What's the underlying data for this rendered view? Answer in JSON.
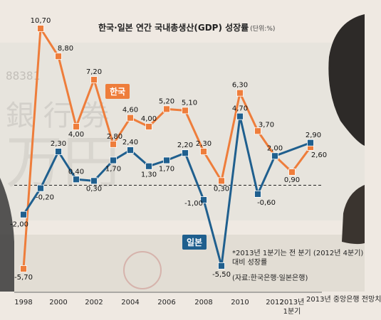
{
  "title": "한국·일본 연간 국내총생산(GDP) 성장률",
  "unit": "(단위:%)",
  "note": "*2013년 1분기는 전 분기 (2012년 4분기) 대비 성장률",
  "source": "(자료:한국은행·일본은행)",
  "last_tick_label": "2013년 중앙은행 전망치",
  "chart_data": {
    "type": "line",
    "x": [
      "1998",
      "1999",
      "2000",
      "2001",
      "2002",
      "2003",
      "2004",
      "2005",
      "2006",
      "2007",
      "2008",
      "2009",
      "2010",
      "2011",
      "2012",
      "2013년 1분기",
      "2013년 중앙은행 전망치"
    ],
    "tick_labels": [
      "1998",
      "",
      "2000",
      "",
      "2002",
      "",
      "2004",
      "",
      "2006",
      "",
      "2008",
      "",
      "2010",
      "",
      "2012",
      "2013년 1분기",
      ""
    ],
    "series": [
      {
        "name": "한국",
        "color": "#ee7d3b",
        "values": [
          -5.7,
          10.7,
          8.8,
          4.0,
          7.2,
          2.8,
          4.6,
          4.0,
          5.2,
          5.1,
          2.3,
          0.3,
          6.3,
          3.7,
          2.0,
          0.9,
          2.6
        ],
        "labels": [
          "-5,70",
          "10,70",
          "8,80",
          "4,00",
          "7,20",
          "2,80",
          "4,60",
          "4,00",
          "5,20",
          "5,10",
          "2,30",
          "0,30",
          "6,30",
          "3,70",
          "2,00",
          "0,90",
          "2,60"
        ]
      },
      {
        "name": "일본",
        "color": "#1f5f8e",
        "values": [
          -2.0,
          -0.2,
          2.3,
          0.4,
          0.3,
          1.7,
          2.4,
          1.3,
          1.7,
          2.2,
          -1.0,
          -5.5,
          4.7,
          -0.6,
          2.0,
          null,
          2.9
        ],
        "labels": [
          "-2,00",
          "-0,20",
          "2,30",
          "0,40",
          "0,30",
          "1,70",
          "2,40",
          "1,30",
          "1,70",
          "2,20",
          "-1,00",
          "-5,50",
          "4,70",
          "-0,60",
          "",
          "",
          "2,90"
        ]
      }
    ],
    "ylim": [
      -6.5,
      11.5
    ],
    "zero_line": "dashed"
  }
}
